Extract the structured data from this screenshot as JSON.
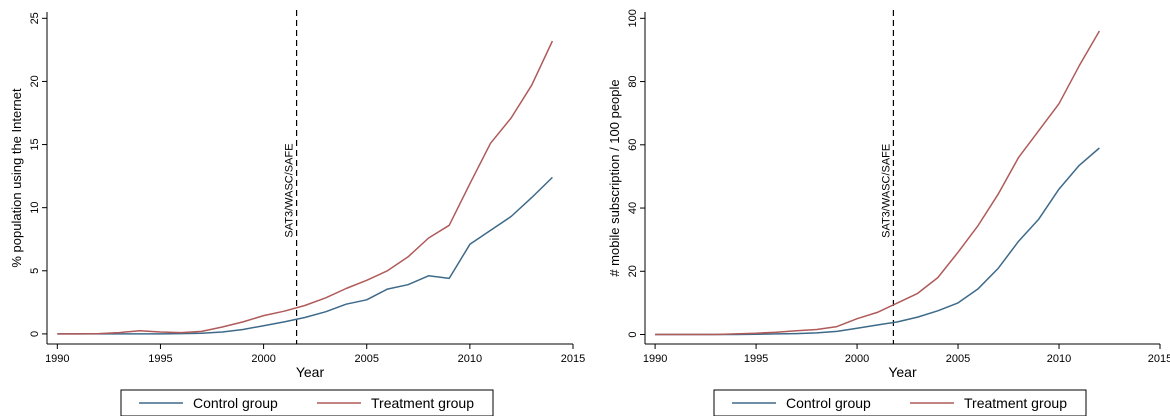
{
  "charts": [
    {
      "chart_data": {
        "type": "line",
        "xlabel": "Year",
        "ylabel": "% population using the Internet",
        "xlim": [
          1989.5,
          2015
        ],
        "ylim": [
          -0.8,
          25.5
        ],
        "xticks": [
          1990,
          1995,
          2000,
          2005,
          2010,
          2015
        ],
        "yticks": [
          0,
          5,
          10,
          15,
          20,
          25
        ],
        "grid": false,
        "legend_position": "bottom",
        "annotation": {
          "x": 2001.6,
          "label": "SAT3/WASC/SAFE",
          "style": "dashed vertical line"
        },
        "series": [
          {
            "name": "Control group",
            "color": "#3e6a8a",
            "x": [
              1990,
              1991,
              1992,
              1993,
              1994,
              1995,
              1996,
              1997,
              1998,
              1999,
              2000,
              2001,
              2002,
              2003,
              2004,
              2005,
              2006,
              2007,
              2008,
              2009,
              2010,
              2011,
              2012,
              2013,
              2014
            ],
            "y": [
              0,
              0,
              0,
              0,
              0,
              0,
              0.02,
              0.05,
              0.15,
              0.35,
              0.65,
              0.95,
              1.3,
              1.75,
              2.35,
              2.7,
              3.55,
              3.9,
              4.6,
              4.4,
              7.1,
              8.2,
              9.3,
              10.8,
              12.4
            ]
          },
          {
            "name": "Treatment group",
            "color": "#b05a5a",
            "x": [
              1990,
              1991,
              1992,
              1993,
              1994,
              1995,
              1996,
              1997,
              1998,
              1999,
              2000,
              2001,
              2002,
              2003,
              2004,
              2005,
              2006,
              2007,
              2008,
              2009,
              2010,
              2011,
              2012,
              2013,
              2014
            ],
            "y": [
              0,
              0,
              0.02,
              0.1,
              0.25,
              0.15,
              0.1,
              0.2,
              0.55,
              0.95,
              1.45,
              1.8,
              2.25,
              2.85,
              3.6,
              4.25,
              5.0,
              6.1,
              7.6,
              8.6,
              11.9,
              15.1,
              17.1,
              19.7,
              23.2
            ]
          }
        ]
      }
    },
    {
      "chart_data": {
        "type": "line",
        "xlabel": "Year",
        "ylabel": "# mobile subscription / 100 people",
        "xlim": [
          1989.5,
          2015
        ],
        "ylim": [
          -3,
          102
        ],
        "xticks": [
          1990,
          1995,
          2000,
          2005,
          2010,
          2015
        ],
        "yticks": [
          0,
          20,
          40,
          60,
          80,
          100
        ],
        "grid": false,
        "legend_position": "bottom",
        "annotation": {
          "x": 2001.8,
          "label": "SAT3/WASC/SAFE",
          "style": "dashed vertical line"
        },
        "series": [
          {
            "name": "Control group",
            "color": "#3e6a8a",
            "x": [
              1990,
              1991,
              1992,
              1993,
              1994,
              1995,
              1996,
              1997,
              1998,
              1999,
              2000,
              2001,
              2002,
              2003,
              2004,
              2005,
              2006,
              2007,
              2008,
              2009,
              2010,
              2011,
              2012
            ],
            "y": [
              0,
              0,
              0,
              0,
              0,
              0.1,
              0.2,
              0.3,
              0.5,
              1.0,
              2.0,
              3.0,
              4.0,
              5.5,
              7.5,
              10.0,
              14.5,
              21.0,
              29.5,
              36.5,
              46.0,
              53.5,
              59.0
            ]
          },
          {
            "name": "Treatment group",
            "color": "#b05a5a",
            "x": [
              1990,
              1991,
              1992,
              1993,
              1994,
              1995,
              1996,
              1997,
              1998,
              1999,
              2000,
              2001,
              2002,
              2003,
              2004,
              2005,
              2006,
              2007,
              2008,
              2009,
              2010,
              2011,
              2012
            ],
            "y": [
              0,
              0,
              0,
              0,
              0.2,
              0.4,
              0.7,
              1.2,
              1.6,
              2.5,
              5.0,
              7.0,
              10.0,
              13.0,
              18.0,
              26.0,
              34.5,
              44.5,
              56.0,
              64.5,
              73.0,
              85.0,
              96.0
            ]
          }
        ]
      }
    }
  ]
}
